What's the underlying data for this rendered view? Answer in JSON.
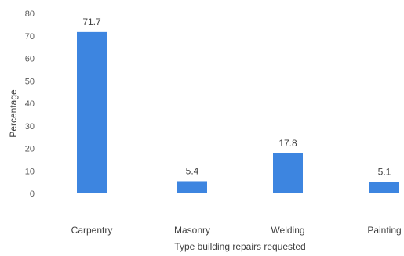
{
  "chart_data": {
    "type": "bar",
    "title": "",
    "xlabel": "Type building repairs requested",
    "ylabel": "Percentage",
    "categories": [
      "Carpentry",
      "Masonry",
      "Welding",
      "Painting"
    ],
    "values": [
      71.7,
      5.4,
      17.8,
      5.1
    ],
    "data_labels": [
      "71.7",
      "5.4",
      "17.8",
      "5.1"
    ],
    "ylim": [
      0,
      80
    ],
    "yticks": [
      0,
      10,
      20,
      30,
      40,
      50,
      60,
      70,
      80
    ],
    "grid": false,
    "legend": "none",
    "bar_color": "#3d85e0"
  }
}
